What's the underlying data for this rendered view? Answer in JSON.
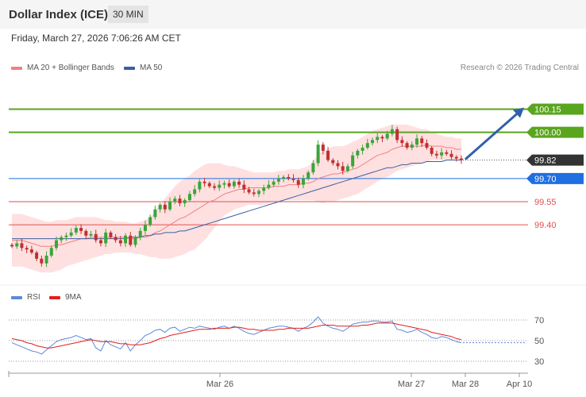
{
  "header": {
    "title": "Dollar Index (ICE)",
    "interval": "30 MIN"
  },
  "timestamp": "Friday, March 27, 2026 7:06:26 AM CET",
  "legend": {
    "ma20": {
      "label": "MA 20 + Bollinger Bands",
      "color": "#f08080"
    },
    "ma50": {
      "label": "MA 50",
      "color": "#3a5fa0"
    },
    "rsi": {
      "label": "RSI",
      "color": "#5b8ad8"
    },
    "rsi_ma": {
      "label": "9MA",
      "color": "#e02020"
    }
  },
  "credit": "Research © 2026 Trading Central",
  "chart_data": [
    {
      "type": "candlestick",
      "ylim": [
        99.03,
        100.24
      ],
      "x_ticks": [
        "Mar 26",
        "Mar 27",
        "Mar 28",
        "Apr 10"
      ],
      "levels": [
        {
          "value": 100.15,
          "label": "100.15",
          "kind": "resistance",
          "color": "#5aa51e"
        },
        {
          "value": 100.0,
          "label": "100.00",
          "kind": "resistance",
          "color": "#5aa51e"
        },
        {
          "value": 99.82,
          "label": "99.82",
          "kind": "last",
          "color": "#333333"
        },
        {
          "value": 99.7,
          "label": "99.70",
          "kind": "pivot",
          "color": "#1f6fe0"
        },
        {
          "value": 99.55,
          "label": "99.55",
          "kind": "support",
          "color": "#e05050"
        },
        {
          "value": 99.4,
          "label": "99.40",
          "kind": "support",
          "color": "#e05050"
        }
      ],
      "arrow": {
        "from": 99.82,
        "to": 100.15
      },
      "close": [
        99.26,
        99.28,
        99.25,
        99.24,
        99.22,
        99.18,
        99.15,
        99.2,
        99.25,
        99.3,
        99.32,
        99.33,
        99.35,
        99.38,
        99.36,
        99.33,
        99.34,
        99.3,
        99.28,
        99.35,
        99.32,
        99.3,
        99.28,
        99.33,
        99.27,
        99.32,
        99.36,
        99.4,
        99.45,
        99.5,
        99.53,
        99.5,
        99.55,
        99.57,
        99.54,
        99.56,
        99.6,
        99.63,
        99.68,
        99.67,
        99.65,
        99.64,
        99.66,
        99.67,
        99.65,
        99.68,
        99.66,
        99.63,
        99.61,
        99.6,
        99.62,
        99.64,
        99.66,
        99.68,
        99.7,
        99.71,
        99.7,
        99.69,
        99.66,
        99.7,
        99.74,
        99.8,
        99.92,
        99.88,
        99.82,
        99.8,
        99.78,
        99.75,
        99.78,
        99.85,
        99.88,
        99.9,
        99.93,
        99.95,
        99.97,
        99.96,
        99.99,
        100.02,
        99.95,
        99.93,
        99.9,
        99.92,
        99.96,
        99.93,
        99.9,
        99.86,
        99.85,
        99.87,
        99.86,
        99.84,
        99.83,
        99.82
      ],
      "ma20": [
        99.3,
        99.3,
        99.3,
        99.29,
        99.28,
        99.27,
        99.26,
        99.26,
        99.26,
        99.27,
        99.27,
        99.28,
        99.29,
        99.3,
        99.31,
        99.31,
        99.32,
        99.32,
        99.32,
        99.32,
        99.32,
        99.32,
        99.32,
        99.32,
        99.31,
        99.31,
        99.32,
        99.32,
        99.33,
        99.35,
        99.36,
        99.38,
        99.4,
        99.42,
        99.44,
        99.45,
        99.47,
        99.49,
        99.51,
        99.53,
        99.55,
        99.56,
        99.58,
        99.6,
        99.61,
        99.62,
        99.63,
        99.63,
        99.64,
        99.64,
        99.64,
        99.64,
        99.64,
        99.65,
        99.65,
        99.65,
        99.66,
        99.66,
        99.66,
        99.67,
        99.67,
        99.68,
        99.7,
        99.71,
        99.72,
        99.73,
        99.73,
        99.74,
        99.75,
        99.76,
        99.77,
        99.79,
        99.81,
        99.83,
        99.85,
        99.86,
        99.87,
        99.89,
        99.9,
        99.91,
        99.91,
        99.91,
        99.91,
        99.91,
        99.92,
        99.91,
        99.91,
        99.91,
        99.9,
        99.9,
        99.89,
        99.89
      ],
      "bb_upper": [
        99.47,
        99.47,
        99.47,
        99.46,
        99.45,
        99.44,
        99.43,
        99.42,
        99.42,
        99.43,
        99.43,
        99.43,
        99.44,
        99.45,
        99.45,
        99.45,
        99.45,
        99.45,
        99.44,
        99.43,
        99.43,
        99.42,
        99.42,
        99.42,
        99.41,
        99.41,
        99.42,
        99.43,
        99.45,
        99.49,
        99.53,
        99.57,
        99.61,
        99.65,
        99.68,
        99.7,
        99.72,
        99.75,
        99.77,
        99.79,
        99.8,
        99.8,
        99.8,
        99.79,
        99.78,
        99.78,
        99.77,
        99.76,
        99.75,
        99.74,
        99.74,
        99.74,
        99.74,
        99.74,
        99.75,
        99.75,
        99.76,
        99.76,
        99.76,
        99.77,
        99.78,
        99.81,
        99.86,
        99.88,
        99.89,
        99.91,
        99.91,
        99.91,
        99.92,
        99.94,
        99.95,
        99.97,
        99.99,
        100.01,
        100.02,
        100.03,
        100.04,
        100.05,
        100.05,
        100.05,
        100.05,
        100.04,
        100.03,
        100.02,
        100.02,
        100.0,
        99.99,
        99.98,
        99.97,
        99.97,
        99.96,
        99.96
      ],
      "bb_lower": [
        99.13,
        99.13,
        99.13,
        99.12,
        99.11,
        99.1,
        99.09,
        99.09,
        99.09,
        99.1,
        99.11,
        99.13,
        99.14,
        99.15,
        99.16,
        99.17,
        99.18,
        99.19,
        99.2,
        99.21,
        99.21,
        99.22,
        99.22,
        99.22,
        99.22,
        99.21,
        99.21,
        99.2,
        99.19,
        99.19,
        99.18,
        99.18,
        99.18,
        99.19,
        99.2,
        99.21,
        99.23,
        99.24,
        99.27,
        99.3,
        99.34,
        99.38,
        99.42,
        99.46,
        99.48,
        99.5,
        99.51,
        99.52,
        99.53,
        99.53,
        99.53,
        99.53,
        99.54,
        99.55,
        99.55,
        99.56,
        99.56,
        99.56,
        99.56,
        99.56,
        99.56,
        99.56,
        99.55,
        99.54,
        99.55,
        99.55,
        99.56,
        99.57,
        99.58,
        99.59,
        99.6,
        99.62,
        99.64,
        99.66,
        99.68,
        99.7,
        99.71,
        99.73,
        99.75,
        99.76,
        99.77,
        99.78,
        99.79,
        99.8,
        99.81,
        99.82,
        99.82,
        99.82,
        99.82,
        99.82,
        99.82,
        99.82
      ],
      "ma50": [
        99.31,
        99.31,
        99.31,
        99.31,
        99.31,
        99.31,
        99.31,
        99.31,
        99.31,
        99.31,
        99.31,
        99.31,
        99.31,
        99.31,
        99.31,
        99.31,
        99.31,
        99.31,
        99.31,
        99.31,
        99.31,
        99.31,
        99.31,
        99.31,
        99.32,
        99.32,
        99.32,
        99.33,
        99.33,
        99.34,
        99.34,
        99.35,
        99.35,
        99.35,
        99.36,
        99.36,
        99.37,
        99.38,
        99.39,
        99.4,
        99.41,
        99.42,
        99.43,
        99.44,
        99.45,
        99.46,
        99.47,
        99.48,
        99.49,
        99.5,
        99.51,
        99.52,
        99.53,
        99.54,
        99.55,
        99.56,
        99.57,
        99.58,
        99.59,
        99.6,
        99.61,
        99.62,
        99.63,
        99.64,
        99.65,
        99.66,
        99.67,
        99.68,
        99.69,
        99.7,
        99.71,
        99.72,
        99.73,
        99.74,
        99.75,
        99.76,
        99.77,
        99.77,
        99.78,
        99.79,
        99.79,
        99.8,
        99.8,
        99.8,
        99.81,
        99.81,
        99.81,
        99.81,
        99.82,
        99.82,
        99.82,
        99.82
      ]
    },
    {
      "type": "line",
      "ylim": [
        20,
        80
      ],
      "y_ticks": [
        70,
        50,
        30
      ],
      "series": [
        {
          "name": "RSI",
          "color": "#5b8ad8",
          "values": [
            48,
            46,
            44,
            42,
            40,
            39,
            37,
            41,
            45,
            49,
            51,
            52,
            53,
            55,
            53,
            51,
            52,
            43,
            40,
            50,
            46,
            44,
            42,
            48,
            40,
            46,
            50,
            55,
            57,
            60,
            61,
            58,
            62,
            63,
            59,
            61,
            63,
            62,
            64,
            63,
            62,
            61,
            63,
            64,
            62,
            64,
            62,
            59,
            57,
            56,
            58,
            60,
            62,
            63,
            64,
            64,
            63,
            62,
            59,
            62,
            64,
            68,
            73,
            67,
            64,
            62,
            61,
            59,
            62,
            66,
            67,
            68,
            68,
            69,
            69,
            68,
            68,
            69,
            61,
            60,
            58,
            59,
            61,
            58,
            56,
            53,
            52,
            54,
            53,
            51,
            49,
            48
          ]
        },
        {
          "name": "9MA",
          "color": "#e02020",
          "values": [
            52,
            51,
            50,
            48,
            47,
            45,
            44,
            43,
            43,
            44,
            45,
            46,
            47,
            48,
            49,
            50,
            51,
            50,
            49,
            49,
            49,
            48,
            47,
            47,
            46,
            46,
            46,
            47,
            48,
            50,
            52,
            53,
            55,
            56,
            57,
            58,
            59,
            60,
            61,
            61,
            61,
            62,
            62,
            62,
            62,
            63,
            63,
            62,
            61,
            61,
            60,
            60,
            60,
            60,
            61,
            61,
            62,
            62,
            62,
            62,
            62,
            63,
            64,
            65,
            65,
            65,
            64,
            64,
            64,
            64,
            64,
            65,
            65,
            66,
            67,
            67,
            67,
            67,
            66,
            65,
            64,
            63,
            62,
            61,
            60,
            58,
            57,
            56,
            55,
            54,
            52,
            51
          ]
        }
      ]
    }
  ]
}
